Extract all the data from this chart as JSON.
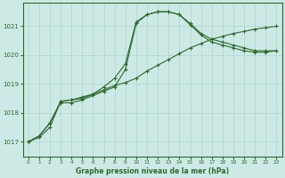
{
  "title": "Graphe pression niveau de la mer (hPa)",
  "background_color": "#cce9e5",
  "grid_color": "#b0d4cf",
  "line_color": "#2d6b2d",
  "xlim": [
    -0.5,
    23.5
  ],
  "ylim": [
    1016.5,
    1021.8
  ],
  "yticks": [
    1017,
    1018,
    1019,
    1020,
    1021
  ],
  "xticks": [
    0,
    1,
    2,
    3,
    4,
    5,
    6,
    7,
    8,
    9,
    10,
    11,
    12,
    13,
    14,
    15,
    16,
    17,
    18,
    19,
    20,
    21,
    22,
    23
  ],
  "series1_x": [
    0,
    1,
    2,
    3,
    4,
    5,
    6,
    7,
    8,
    9,
    10,
    11,
    12,
    13,
    14,
    15,
    16,
    17,
    18,
    19,
    20,
    21,
    22,
    23
  ],
  "series1_y": [
    1017.0,
    1017.15,
    1017.5,
    1018.4,
    1018.45,
    1018.55,
    1018.65,
    1018.8,
    1018.95,
    1019.05,
    1019.2,
    1019.45,
    1019.65,
    1019.85,
    1020.05,
    1020.25,
    1020.4,
    1020.55,
    1020.65,
    1020.75,
    1020.82,
    1020.9,
    1020.95,
    1021.0
  ],
  "series2_x": [
    0,
    1,
    2,
    3,
    4,
    5,
    6,
    7,
    8,
    9,
    10,
    11,
    12,
    13,
    14,
    15,
    16,
    17,
    18,
    19,
    20,
    21,
    22,
    23
  ],
  "series2_y": [
    1017.0,
    1017.2,
    1017.65,
    1018.35,
    1018.35,
    1018.45,
    1018.6,
    1018.75,
    1018.9,
    1019.5,
    1021.1,
    1021.4,
    1021.5,
    1021.5,
    1021.4,
    1021.05,
    1020.7,
    1020.45,
    1020.35,
    1020.25,
    1020.15,
    1020.1,
    1020.1,
    1020.15
  ],
  "series3_x": [
    0,
    1,
    2,
    3,
    4,
    5,
    6,
    7,
    8,
    9,
    10,
    11,
    12,
    13,
    14,
    15,
    16,
    17,
    18,
    19,
    20,
    21,
    22,
    23
  ],
  "series3_y": [
    1017.0,
    1017.2,
    1017.65,
    1018.4,
    1018.45,
    1018.5,
    1018.65,
    1018.9,
    1019.2,
    1019.7,
    1021.15,
    1021.4,
    1021.5,
    1021.5,
    1021.4,
    1021.1,
    1020.75,
    1020.55,
    1020.45,
    1020.35,
    1020.25,
    1020.15,
    1020.15,
    1020.15
  ]
}
